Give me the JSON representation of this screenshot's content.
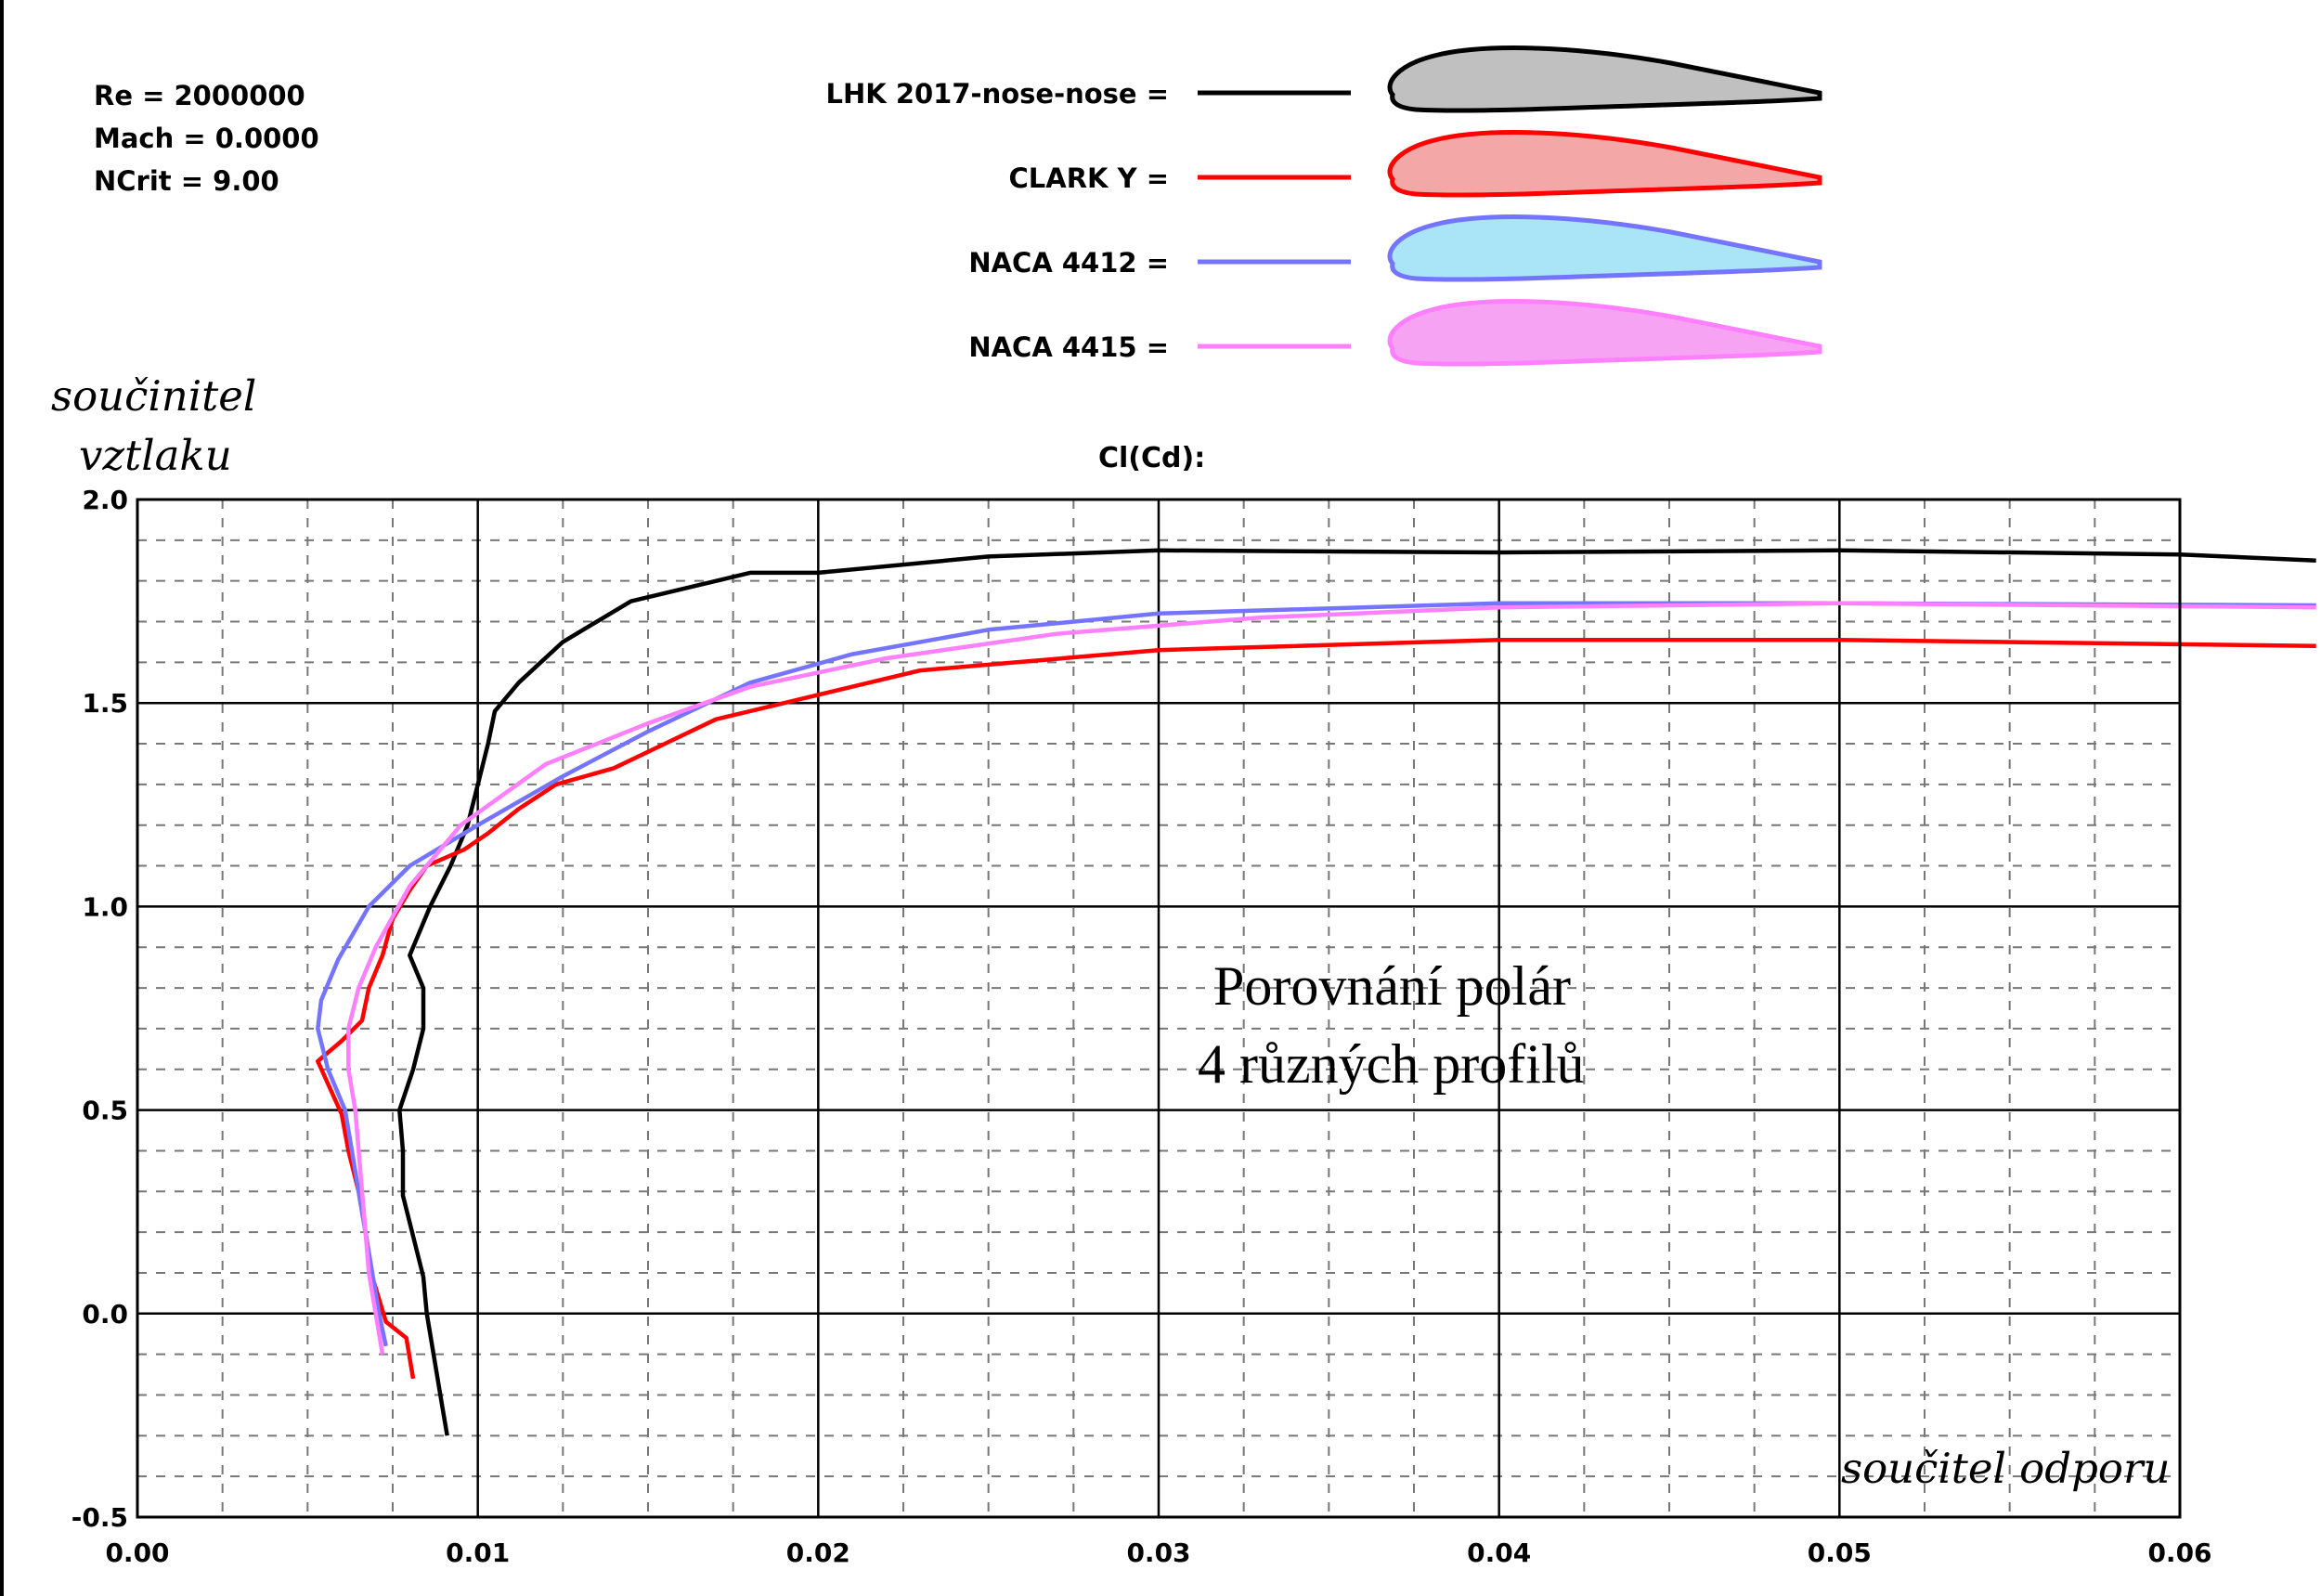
{
  "params": {
    "re": "Re = 2000000",
    "mach": "Mach = 0.0000",
    "ncrit": "NCrit = 9.00"
  },
  "legend": [
    {
      "label": "LHK 2017-nose-nose =",
      "color": "#000000",
      "fill": "#c0c0c0"
    },
    {
      "label": "CLARK Y =",
      "color": "#ff0000",
      "fill": "#f4a7a7"
    },
    {
      "label": "NACA 4412 =",
      "color": "#7474ff",
      "fill": "#a9e4f7"
    },
    {
      "label": "NACA 4415 =",
      "color": "#ff80ff",
      "fill": "#f7a3f4"
    }
  ],
  "labels": {
    "ylabel_line1": "součinitel",
    "ylabel_line2": "vztlaku",
    "xlabel": "součitel  odporu",
    "title": "Cl(Cd):",
    "annotation_line1": "Porovnání polár",
    "annotation_line2": "4 různých profilů"
  },
  "chart_data": {
    "type": "line",
    "title": "Cl(Cd):",
    "xlabel": "součitel  odporu",
    "ylabel": "součinitel vztlaku",
    "xlim": [
      0.0,
      0.06
    ],
    "ylim": [
      -0.5,
      2.0
    ],
    "xticks": [
      "0.00",
      "0.01",
      "0.02",
      "0.03",
      "0.04",
      "0.05",
      "0.06"
    ],
    "yticks": [
      "2.0",
      "1.5",
      "1.0",
      "0.5",
      "0.0",
      "-0.5"
    ],
    "grid": true,
    "series": [
      {
        "name": "LHK 2017-nose-nose",
        "color": "#000000",
        "points": [
          [
            0.0091,
            -0.3
          ],
          [
            0.0089,
            -0.2
          ],
          [
            0.0087,
            -0.1
          ],
          [
            0.0085,
            0.0
          ],
          [
            0.0084,
            0.09
          ],
          [
            0.0081,
            0.19
          ],
          [
            0.0078,
            0.29
          ],
          [
            0.0078,
            0.4
          ],
          [
            0.0077,
            0.5
          ],
          [
            0.0081,
            0.6
          ],
          [
            0.0084,
            0.7
          ],
          [
            0.0084,
            0.8
          ],
          [
            0.008,
            0.88
          ],
          [
            0.0086,
            1.0
          ],
          [
            0.0092,
            1.1
          ],
          [
            0.0097,
            1.2
          ],
          [
            0.01,
            1.3
          ],
          [
            0.0103,
            1.4
          ],
          [
            0.0105,
            1.48
          ],
          [
            0.0112,
            1.55
          ],
          [
            0.0125,
            1.65
          ],
          [
            0.0145,
            1.75
          ],
          [
            0.018,
            1.82
          ],
          [
            0.02,
            1.82
          ],
          [
            0.025,
            1.86
          ],
          [
            0.03,
            1.875
          ],
          [
            0.04,
            1.87
          ],
          [
            0.05,
            1.875
          ],
          [
            0.06,
            1.865
          ],
          [
            0.064,
            1.85
          ]
        ]
      },
      {
        "name": "CLARK Y",
        "color": "#ff0000",
        "points": [
          [
            0.0081,
            -0.16
          ],
          [
            0.0079,
            -0.06
          ],
          [
            0.0073,
            -0.02
          ],
          [
            0.0069,
            0.09
          ],
          [
            0.0067,
            0.2
          ],
          [
            0.0065,
            0.3
          ],
          [
            0.0062,
            0.4
          ],
          [
            0.006,
            0.49
          ],
          [
            0.0053,
            0.62
          ],
          [
            0.006,
            0.67
          ],
          [
            0.0066,
            0.72
          ],
          [
            0.0068,
            0.8
          ],
          [
            0.0072,
            0.88
          ],
          [
            0.0075,
            0.97
          ],
          [
            0.008,
            1.04
          ],
          [
            0.0085,
            1.1
          ],
          [
            0.0096,
            1.14
          ],
          [
            0.0103,
            1.18
          ],
          [
            0.0112,
            1.24
          ],
          [
            0.0123,
            1.3
          ],
          [
            0.014,
            1.34
          ],
          [
            0.0155,
            1.4
          ],
          [
            0.017,
            1.46
          ],
          [
            0.019,
            1.5
          ],
          [
            0.023,
            1.58
          ],
          [
            0.03,
            1.63
          ],
          [
            0.04,
            1.655
          ],
          [
            0.05,
            1.655
          ],
          [
            0.064,
            1.64
          ]
        ]
      },
      {
        "name": "NACA 4412",
        "color": "#7474ff",
        "points": [
          [
            0.0073,
            -0.08
          ],
          [
            0.0071,
            0.0
          ],
          [
            0.0069,
            0.1
          ],
          [
            0.0067,
            0.2
          ],
          [
            0.0065,
            0.3
          ],
          [
            0.0063,
            0.4
          ],
          [
            0.0061,
            0.5
          ],
          [
            0.0056,
            0.6
          ],
          [
            0.0053,
            0.7
          ],
          [
            0.0054,
            0.77
          ],
          [
            0.0059,
            0.87
          ],
          [
            0.0068,
            1.0
          ],
          [
            0.008,
            1.1
          ],
          [
            0.01,
            1.2
          ],
          [
            0.0125,
            1.32
          ],
          [
            0.015,
            1.43
          ],
          [
            0.018,
            1.55
          ],
          [
            0.021,
            1.62
          ],
          [
            0.025,
            1.68
          ],
          [
            0.03,
            1.72
          ],
          [
            0.04,
            1.745
          ],
          [
            0.05,
            1.745
          ],
          [
            0.064,
            1.74
          ]
        ]
      },
      {
        "name": "NACA 4415",
        "color": "#ff80ff",
        "points": [
          [
            0.0072,
            -0.1
          ],
          [
            0.007,
            0.0
          ],
          [
            0.0068,
            0.1
          ],
          [
            0.0067,
            0.2
          ],
          [
            0.0066,
            0.3
          ],
          [
            0.0065,
            0.4
          ],
          [
            0.0064,
            0.5
          ],
          [
            0.0062,
            0.6
          ],
          [
            0.0062,
            0.7
          ],
          [
            0.0065,
            0.8
          ],
          [
            0.007,
            0.9
          ],
          [
            0.008,
            1.05
          ],
          [
            0.0095,
            1.2
          ],
          [
            0.012,
            1.35
          ],
          [
            0.015,
            1.45
          ],
          [
            0.018,
            1.54
          ],
          [
            0.022,
            1.61
          ],
          [
            0.027,
            1.67
          ],
          [
            0.033,
            1.71
          ],
          [
            0.04,
            1.735
          ],
          [
            0.05,
            1.745
          ],
          [
            0.064,
            1.735
          ]
        ]
      }
    ]
  }
}
